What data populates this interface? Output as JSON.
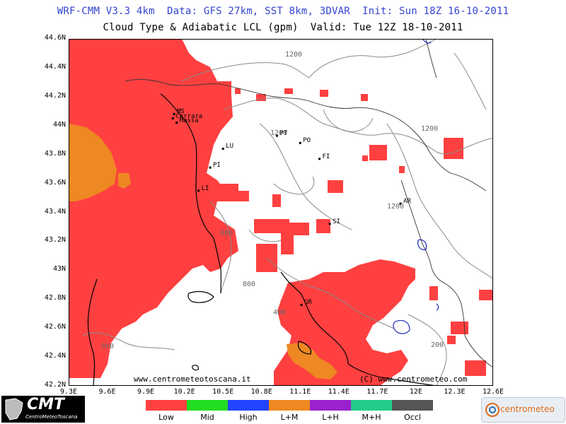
{
  "header": {
    "line1": "WRF-CMM V3.3 4km  Data: GFS 27km, SST 8km, 3DVAR  Init: Sun 18Z 16-10-2011",
    "line2": "Cloud Type & Adiabatic LCL (gpm)  Valid: Tue 12Z 18-10-2011"
  },
  "axes": {
    "y_labels": [
      "44.6N",
      "44.4N",
      "44.2N",
      "44N",
      "43.8N",
      "43.6N",
      "43.4N",
      "43.2N",
      "43N",
      "42.8N",
      "42.6N",
      "42.4N",
      "42.2N"
    ],
    "x_labels": [
      "9.3E",
      "9.6E",
      "9.9E",
      "10.2E",
      "10.5E",
      "10.8E",
      "11.1E",
      "11.4E",
      "11.7E",
      "12E",
      "12.3E",
      "12.6E"
    ]
  },
  "cities": [
    {
      "name": "MS",
      "lon": 10.12,
      "lat": 44.08
    },
    {
      "name": "Carrara",
      "lon": 10.11,
      "lat": 44.05
    },
    {
      "name": "Massa",
      "lon": 10.14,
      "lat": 44.02
    },
    {
      "name": "LU",
      "lon": 10.5,
      "lat": 43.84
    },
    {
      "name": "PT",
      "lon": 10.92,
      "lat": 43.93
    },
    {
      "name": "PO",
      "lon": 11.1,
      "lat": 43.88
    },
    {
      "name": "FI",
      "lon": 11.25,
      "lat": 43.77
    },
    {
      "name": "PI",
      "lon": 10.4,
      "lat": 43.71
    },
    {
      "name": "LI",
      "lon": 10.31,
      "lat": 43.55
    },
    {
      "name": "AR",
      "lon": 11.88,
      "lat": 43.46
    },
    {
      "name": "SI",
      "lon": 11.33,
      "lat": 43.32
    },
    {
      "name": "GR",
      "lon": 11.11,
      "lat": 42.76
    }
  ],
  "contour_labels": [
    "1200",
    "1200",
    "1200",
    "1200",
    "800",
    "800",
    "400",
    "800",
    "200"
  ],
  "watermarks": {
    "left": "www.centrometeotoscana.it",
    "right": "(C) www.centrometeo.com"
  },
  "legend": [
    {
      "label": "Low",
      "color": "#ff4040"
    },
    {
      "label": "Mid",
      "color": "#22dd22"
    },
    {
      "label": "High",
      "color": "#2244ff"
    },
    {
      "label": "L+M",
      "color": "#ee8822"
    },
    {
      "label": "L+H",
      "color": "#9922cc"
    },
    {
      "label": "M+H",
      "color": "#22cc88"
    },
    {
      "label": "Occl",
      "color": "#555555"
    }
  ],
  "logos": {
    "cmt_big": "CMT",
    "cmt_small": "CentroMeteoToscana",
    "cm_text": "centrometeo"
  },
  "colors": {
    "low_cloud": "#ff4040",
    "low_mid": "#ee8822",
    "coast": "#000000",
    "contour": "#888888"
  }
}
